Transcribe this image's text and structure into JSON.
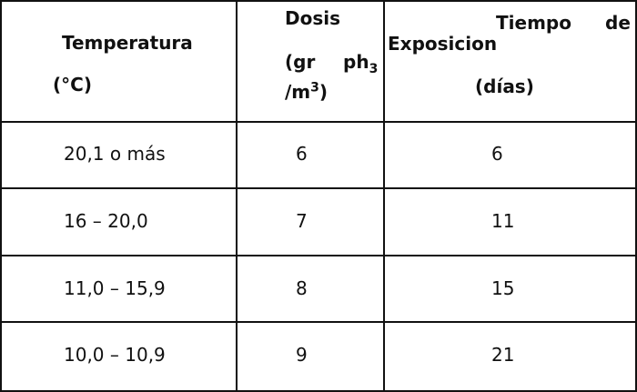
{
  "header": [
    {
      "lines": [
        "Temperatura",
        "(°C)"
      ]
    },
    {
      "title": "Dosis",
      "unit": {
        "open": "(gr",
        "compound": "ph",
        "sub": "3",
        "per": "/m",
        "sup": "3",
        "close": ")"
      }
    },
    {
      "first": "Tiempo",
      "second": "de",
      "lines": [
        "Exposicion",
        "(días)"
      ]
    }
  ],
  "table": {
    "rows": [
      [
        "20,1 o más",
        "6",
        "6"
      ],
      [
        "16 – 20,0",
        "7",
        "11"
      ],
      [
        "11,0 – 15,9",
        "8",
        "15"
      ],
      [
        "10,0 – 10,9",
        "9",
        "21"
      ]
    ]
  }
}
